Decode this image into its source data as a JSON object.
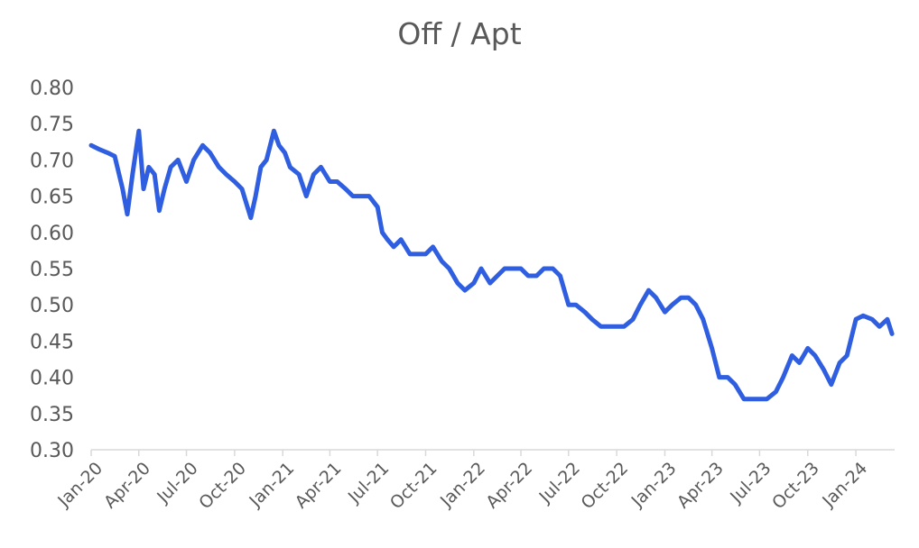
{
  "chart_data": {
    "type": "line",
    "title": "Off / Apt",
    "xlabel": "",
    "ylabel": "",
    "ylim": [
      0.3,
      0.8
    ],
    "yticks": [
      "0.30",
      "0.35",
      "0.40",
      "0.45",
      "0.50",
      "0.55",
      "0.60",
      "0.65",
      "0.70",
      "0.75",
      "0.80"
    ],
    "xticks": [
      "Jan-20",
      "Apr-20",
      "Jul-20",
      "Oct-20",
      "Jan-21",
      "Apr-21",
      "Jul-21",
      "Oct-21",
      "Jan-22",
      "Apr-22",
      "Jul-22",
      "Oct-22",
      "Jan-23",
      "Apr-23",
      "Jul-23",
      "Oct-23",
      "Jan-24"
    ],
    "xlim": [
      "2020-01-01",
      "2024-03-15"
    ],
    "grid": false,
    "line_color": "#2f5fe0",
    "series": [
      {
        "x": [
          "2020-01-01",
          "2020-01-15",
          "2020-02-01",
          "2020-02-15",
          "2020-03-01",
          "2020-03-10",
          "2020-03-20",
          "2020-04-01",
          "2020-04-10",
          "2020-04-20",
          "2020-05-01",
          "2020-05-10",
          "2020-05-20",
          "2020-06-01",
          "2020-06-15",
          "2020-07-01",
          "2020-07-15",
          "2020-08-01",
          "2020-08-15",
          "2020-09-01",
          "2020-09-15",
          "2020-10-01",
          "2020-10-15",
          "2020-11-01",
          "2020-11-10",
          "2020-11-20",
          "2020-12-01",
          "2020-12-15",
          "2020-12-25",
          "2021-01-05",
          "2021-01-15",
          "2021-02-01",
          "2021-02-15",
          "2021-03-01",
          "2021-03-15",
          "2021-04-01",
          "2021-04-15",
          "2021-05-01",
          "2021-05-15",
          "2021-06-01",
          "2021-06-15",
          "2021-07-01",
          "2021-07-10",
          "2021-07-20",
          "2021-08-01",
          "2021-08-15",
          "2021-09-01",
          "2021-09-15",
          "2021-10-01",
          "2021-10-15",
          "2021-11-01",
          "2021-11-15",
          "2021-12-01",
          "2021-12-15",
          "2022-01-01",
          "2022-01-15",
          "2022-02-01",
          "2022-02-15",
          "2022-03-01",
          "2022-03-15",
          "2022-04-01",
          "2022-04-15",
          "2022-05-01",
          "2022-05-15",
          "2022-06-01",
          "2022-06-15",
          "2022-07-01",
          "2022-07-15",
          "2022-08-01",
          "2022-08-15",
          "2022-09-01",
          "2022-09-15",
          "2022-10-01",
          "2022-10-15",
          "2022-11-01",
          "2022-11-15",
          "2022-12-01",
          "2022-12-15",
          "2023-01-01",
          "2023-01-15",
          "2023-02-01",
          "2023-02-15",
          "2023-03-01",
          "2023-03-15",
          "2023-04-01",
          "2023-04-15",
          "2023-05-01",
          "2023-05-15",
          "2023-06-01",
          "2023-06-15",
          "2023-07-01",
          "2023-07-15",
          "2023-08-01",
          "2023-08-15",
          "2023-09-01",
          "2023-09-15",
          "2023-10-01",
          "2023-10-15",
          "2023-11-01",
          "2023-11-15",
          "2023-12-01",
          "2023-12-15",
          "2024-01-01",
          "2024-01-15",
          "2024-02-01",
          "2024-02-15",
          "2024-03-01",
          "2024-03-10"
        ],
        "values": [
          0.72,
          0.715,
          0.71,
          0.705,
          0.66,
          0.625,
          0.68,
          0.74,
          0.66,
          0.69,
          0.68,
          0.63,
          0.66,
          0.69,
          0.7,
          0.67,
          0.7,
          0.72,
          0.71,
          0.69,
          0.68,
          0.67,
          0.66,
          0.62,
          0.65,
          0.69,
          0.7,
          0.74,
          0.72,
          0.71,
          0.69,
          0.68,
          0.65,
          0.68,
          0.69,
          0.67,
          0.67,
          0.66,
          0.65,
          0.65,
          0.65,
          0.635,
          0.6,
          0.59,
          0.58,
          0.59,
          0.57,
          0.57,
          0.57,
          0.58,
          0.56,
          0.55,
          0.53,
          0.52,
          0.53,
          0.55,
          0.53,
          0.54,
          0.55,
          0.55,
          0.55,
          0.54,
          0.54,
          0.55,
          0.55,
          0.54,
          0.5,
          0.5,
          0.49,
          0.48,
          0.47,
          0.47,
          0.47,
          0.47,
          0.48,
          0.5,
          0.52,
          0.51,
          0.49,
          0.5,
          0.51,
          0.51,
          0.5,
          0.48,
          0.44,
          0.4,
          0.4,
          0.39,
          0.37,
          0.37,
          0.37,
          0.37,
          0.38,
          0.4,
          0.43,
          0.42,
          0.44,
          0.43,
          0.41,
          0.39,
          0.42,
          0.43,
          0.48,
          0.485,
          0.48,
          0.47,
          0.48,
          0.46
        ]
      }
    ]
  }
}
